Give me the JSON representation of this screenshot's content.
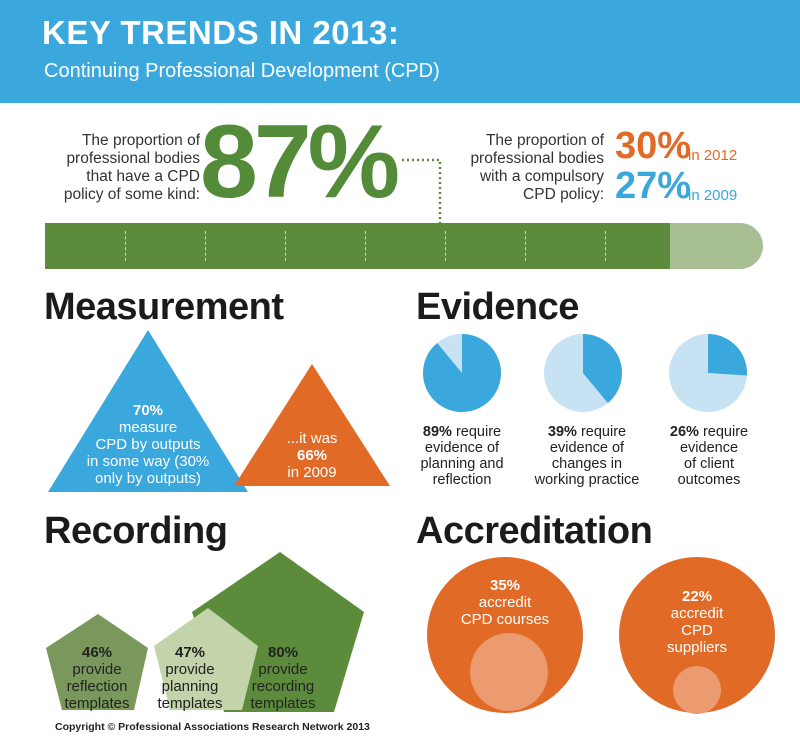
{
  "header": {
    "title": "KEY TRENDS IN 2013:",
    "subtitle": "Continuing Professional Development (CPD)"
  },
  "intro": {
    "left_text": [
      "The proportion of",
      "professional bodies",
      "that have a CPD",
      "policy of some kind:"
    ],
    "big_percent": "87%",
    "big_value": 0.87,
    "right_text": [
      "The proportion of",
      "professional bodies",
      "with a compulsory",
      "CPD policy:"
    ],
    "pct_2012": "30%",
    "pct_2012_label": "in 2012",
    "pct_2009": "27%",
    "pct_2009_label": "in 2009"
  },
  "measurement": {
    "title": "Measurement",
    "blue_pct": "70%",
    "blue_lines": [
      "measure",
      "CPD by outputs",
      "in some way (30%",
      "only by outputs)"
    ],
    "orange_pre": "...it was",
    "orange_pct": "66%",
    "orange_post": "in 2009"
  },
  "evidence": {
    "title": "Evidence",
    "items": [
      {
        "pct": "89%",
        "value": 0.89,
        "first": "require",
        "lines": [
          "evidence of",
          "planning and",
          "reflection"
        ]
      },
      {
        "pct": "39%",
        "value": 0.39,
        "first": "require",
        "lines": [
          "evidence of",
          "changes in",
          "working practice"
        ]
      },
      {
        "pct": "26%",
        "value": 0.26,
        "first": "require",
        "lines": [
          "evidence",
          "of client",
          "outcomes"
        ]
      }
    ]
  },
  "recording": {
    "title": "Recording",
    "items": [
      {
        "pct": "46%",
        "lines": [
          "provide",
          "reflection",
          "templates"
        ]
      },
      {
        "pct": "47%",
        "lines": [
          "provide",
          "planning",
          "templates"
        ]
      },
      {
        "pct": "80%",
        "lines": [
          "provide",
          "recording",
          "templates"
        ]
      }
    ]
  },
  "accreditation": {
    "title": "Accreditation",
    "items": [
      {
        "pct": "35%",
        "lines": [
          "accredit",
          "CPD courses"
        ]
      },
      {
        "pct": "22%",
        "lines": [
          "accredit",
          "CPD",
          "suppliers"
        ]
      }
    ]
  },
  "footer": {
    "copyright": "Copyright © Professional Associations Research Network 2013"
  },
  "colors": {
    "blue": "#3aa7dd",
    "green": "#5c8c3b",
    "orange": "#e06a26",
    "light_blue": "#c7e3f3"
  }
}
